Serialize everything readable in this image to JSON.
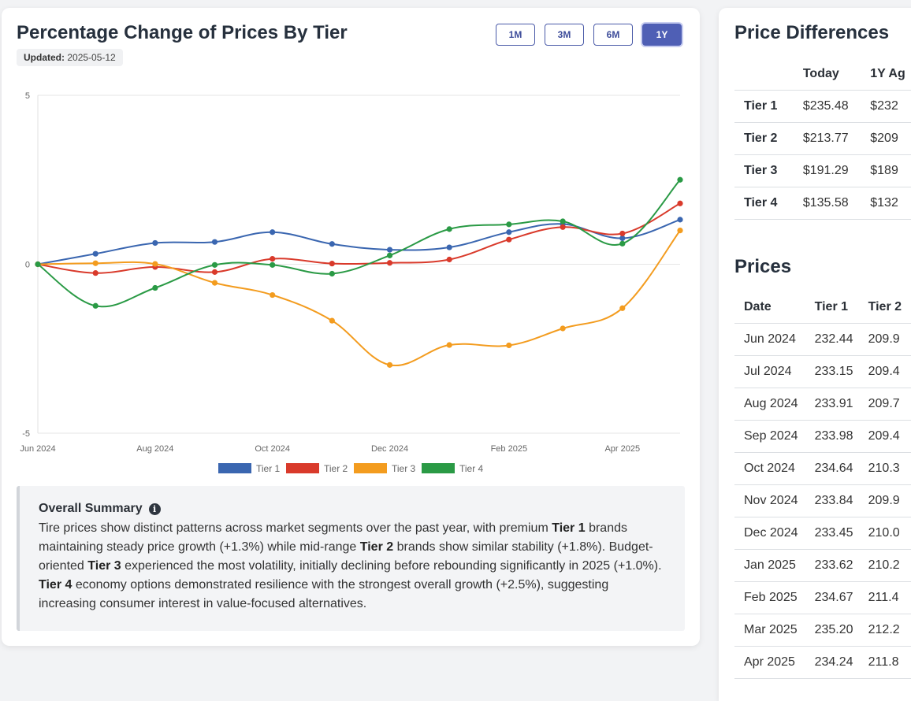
{
  "chart_card": {
    "title": "Percentage Change of Prices By Tier",
    "updated_label": "Updated:",
    "updated_value": "2025-05-12",
    "range_buttons": [
      "1M",
      "3M",
      "6M",
      "1Y"
    ],
    "active_range": "1Y"
  },
  "chart_data": {
    "type": "line",
    "title": "",
    "xlabel": "",
    "ylabel": "",
    "ylim": [
      -5,
      5
    ],
    "y_ticks": [
      "5",
      "0",
      "-5"
    ],
    "x_tick_labels": [
      "Jun 2024",
      "Aug 2024",
      "Oct 2024",
      "Dec 2024",
      "Feb 2025",
      "Apr 2025"
    ],
    "x": [
      "2024-06-01",
      "2024-07-01",
      "2024-08-01",
      "2024-09-01",
      "2024-10-01",
      "2024-11-01",
      "2024-12-01",
      "2025-01-01",
      "2025-02-01",
      "2025-03-01",
      "2025-04-01",
      "2025-05-01"
    ],
    "series": [
      {
        "name": "Tier 1",
        "color": "#3a66b0",
        "values": [
          0,
          0.31,
          0.63,
          0.66,
          0.95,
          0.6,
          0.43,
          0.5,
          0.95,
          1.19,
          0.77,
          1.32
        ]
      },
      {
        "name": "Tier 2",
        "color": "#d93a2b",
        "values": [
          0,
          -0.26,
          -0.08,
          -0.23,
          0.16,
          0.02,
          0.04,
          0.14,
          0.73,
          1.1,
          0.91,
          1.8
        ]
      },
      {
        "name": "Tier 3",
        "color": "#f39c1f",
        "values": [
          0,
          0.03,
          0.01,
          -0.55,
          -0.91,
          -1.67,
          -2.98,
          -2.39,
          -2.4,
          -1.9,
          -1.3,
          1.0
        ]
      },
      {
        "name": "Tier 4",
        "color": "#2a9a45",
        "values": [
          0,
          -1.23,
          -0.7,
          -0.02,
          -0.02,
          -0.28,
          0.26,
          1.04,
          1.18,
          1.27,
          0.61,
          2.5
        ]
      }
    ],
    "legend_position": "bottom"
  },
  "summary": {
    "heading": "Overall Summary",
    "info_icon": "info-icon",
    "t1": "Tire prices show distinct patterns across market segments over the past year, with premium ",
    "b1": "Tier 1",
    "t2": " brands maintaining steady price growth (+1.3%) while mid-range ",
    "b2": "Tier 2",
    "t3": " brands show similar stability (+1.8%). Budget-oriented ",
    "b3": "Tier 3",
    "t4": " experienced the most volatility, initially declining before rebounding significantly in 2025 (+1.0%). ",
    "b4": "Tier 4",
    "t5": " economy options demonstrated resilience with the strongest overall growth (+2.5%), suggesting increasing consumer interest in value-focused alternatives."
  },
  "price_differences": {
    "title": "Price Differences",
    "columns": [
      "",
      "Today",
      "1Y Ag"
    ],
    "rows": [
      [
        "Tier 1",
        "$235.48",
        "$232"
      ],
      [
        "Tier 2",
        "$213.77",
        "$209"
      ],
      [
        "Tier 3",
        "$191.29",
        "$189"
      ],
      [
        "Tier 4",
        "$135.58",
        "$132"
      ]
    ]
  },
  "prices": {
    "title": "Prices",
    "columns": [
      "Date",
      "Tier 1",
      "Tier 2"
    ],
    "rows": [
      [
        "Jun 2024",
        "232.44",
        "209.9"
      ],
      [
        "Jul 2024",
        "233.15",
        "209.4"
      ],
      [
        "Aug 2024",
        "233.91",
        "209.7"
      ],
      [
        "Sep 2024",
        "233.98",
        "209.4"
      ],
      [
        "Oct 2024",
        "234.64",
        "210.3"
      ],
      [
        "Nov 2024",
        "233.84",
        "209.9"
      ],
      [
        "Dec 2024",
        "233.45",
        "210.0"
      ],
      [
        "Jan 2025",
        "233.62",
        "210.2"
      ],
      [
        "Feb 2025",
        "234.67",
        "211.4"
      ],
      [
        "Mar 2025",
        "235.20",
        "212.2"
      ],
      [
        "Apr 2025",
        "234.24",
        "211.8"
      ]
    ]
  }
}
